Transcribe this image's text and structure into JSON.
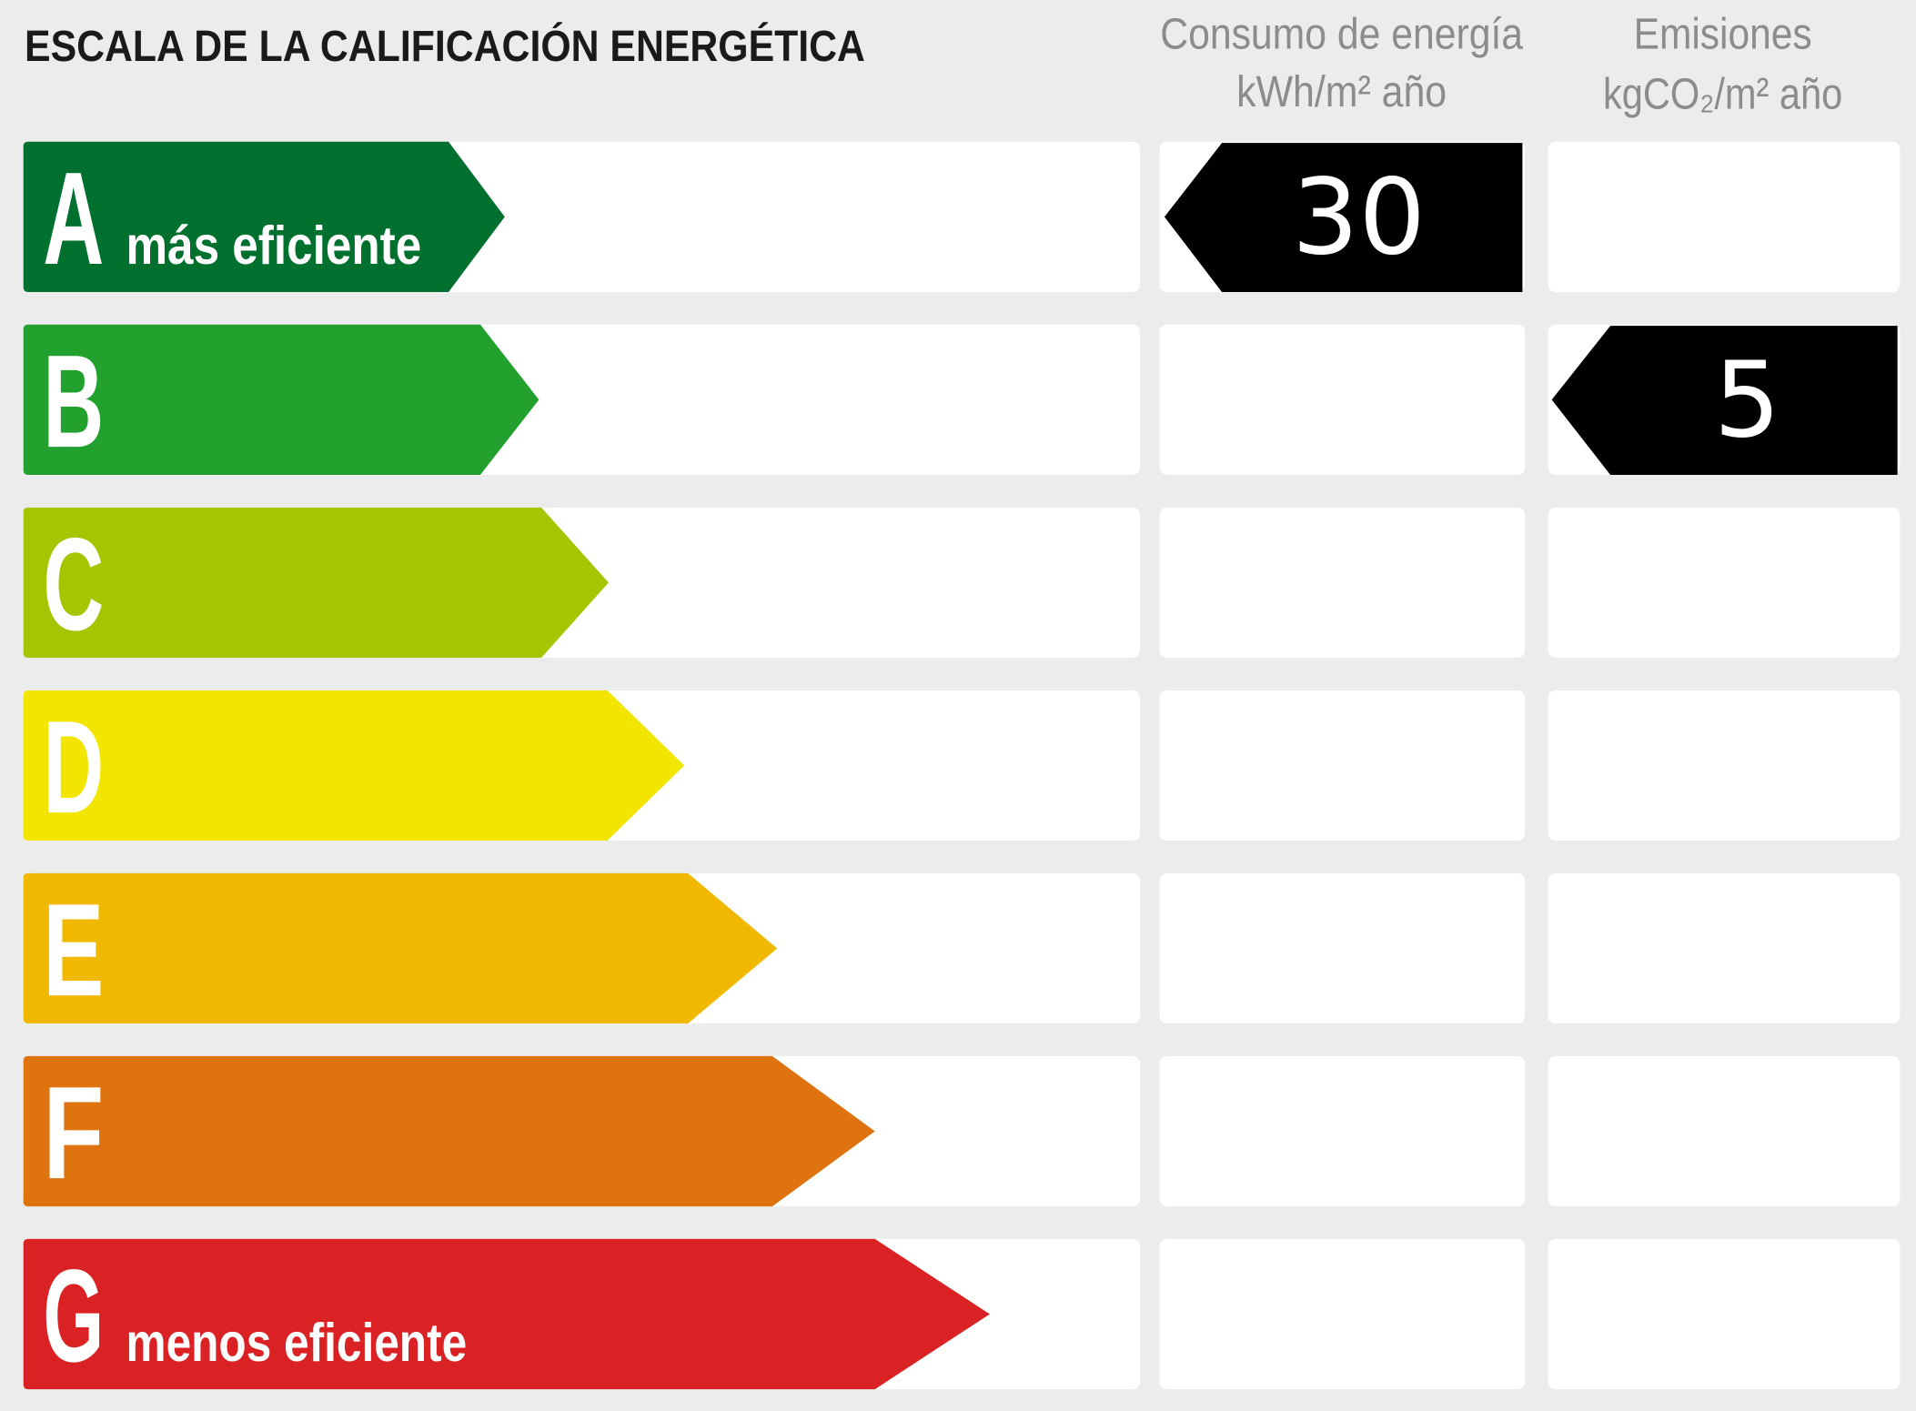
{
  "title": "ESCALA DE LA CALIFICACIÓN ENERGÉTICA",
  "columns": [
    {
      "title": "Consumo de energía",
      "unit": "kWh/m² año"
    },
    {
      "title": "Emisiones",
      "unit": "kgCO₂/m² año"
    }
  ],
  "rows": [
    {
      "letter": "A",
      "label": "más eficiente",
      "color": "#00702f",
      "consumption": 30
    },
    {
      "letter": "B",
      "color": "#22a12f",
      "emissions": 5
    },
    {
      "letter": "C",
      "color": "#a5c500"
    },
    {
      "letter": "D",
      "color": "#f2e500"
    },
    {
      "letter": "E",
      "color": "#f0b900"
    },
    {
      "letter": "F",
      "color": "#de7310"
    },
    {
      "letter": "G",
      "label": "menos eficiente",
      "color": "#da2224"
    }
  ]
}
